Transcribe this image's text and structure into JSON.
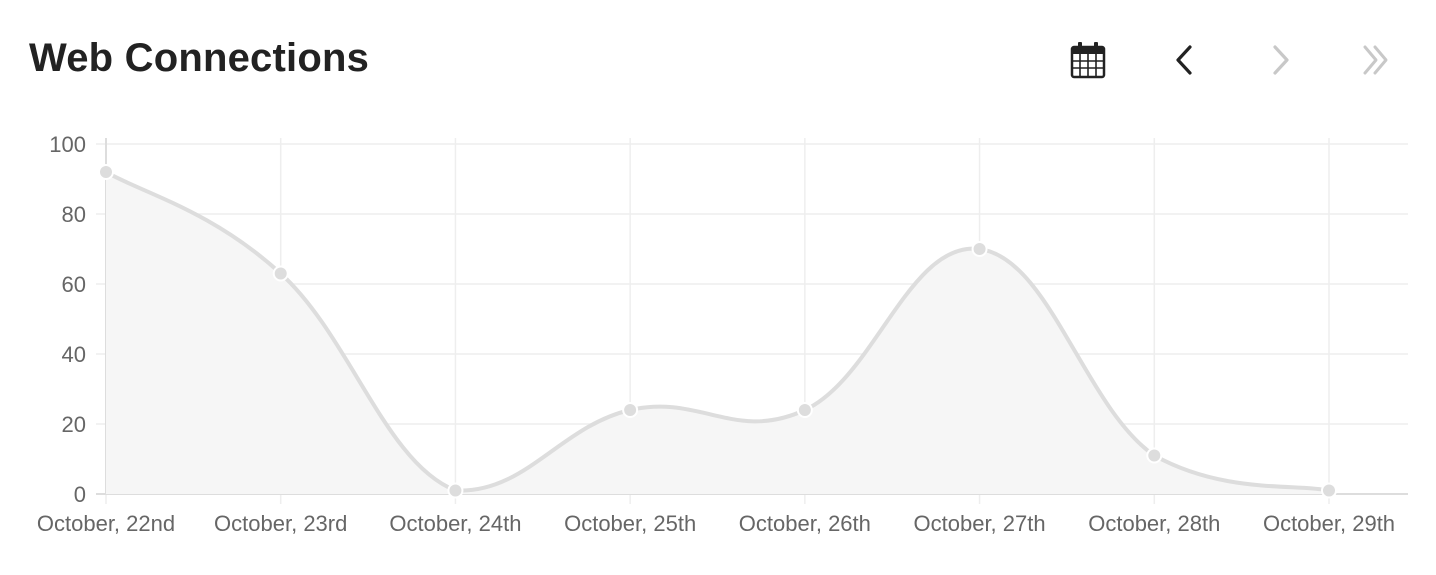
{
  "header": {
    "title": "Web Connections"
  },
  "toolbar": {
    "icons": [
      "calendar-icon",
      "chevron-left-icon",
      "chevron-right-icon",
      "double-chevron-right-icon"
    ],
    "states": {
      "calendar": "enabled",
      "previous": "enabled",
      "next": "disabled",
      "last": "disabled"
    }
  },
  "colors": {
    "line": "#dddddd",
    "fill": "#f6f6f6",
    "point": "#dddddd",
    "grid": "#eeeeee",
    "axis_text": "#666666",
    "icon_active": "#222222",
    "icon_disabled": "#c8c8c8"
  },
  "chart_data": {
    "type": "area",
    "title": "",
    "xlabel": "",
    "ylabel": "",
    "categories": [
      "October, 22nd",
      "October, 23rd",
      "October, 24th",
      "October, 25th",
      "October, 26th",
      "October, 27th",
      "October, 28th",
      "October, 29th"
    ],
    "series": [
      {
        "values": [
          92,
          63,
          1,
          24,
          24,
          70,
          11,
          1
        ]
      }
    ],
    "ylim": [
      0,
      100
    ],
    "yticks": [
      0,
      20,
      40,
      60,
      80,
      100
    ],
    "grid": true,
    "legend": "none",
    "smooth": true
  }
}
